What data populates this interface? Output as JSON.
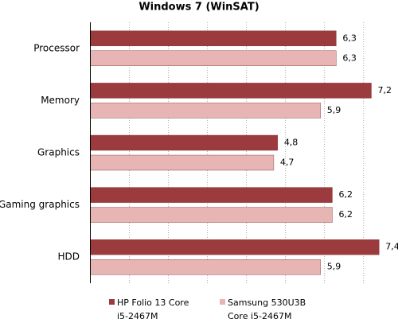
{
  "chart_data": {
    "type": "bar",
    "orientation": "horizontal",
    "title": "Windows 7 (WinSAT)",
    "categories": [
      "Processor",
      "Memory",
      "Graphics",
      "Gaming graphics",
      "HDD"
    ],
    "series": [
      {
        "name": "HP Folio 13 Core i5-2467M",
        "color": "#9c3b3d",
        "values": [
          6.3,
          7.2,
          4.8,
          6.2,
          7.4
        ],
        "value_labels": [
          "6,3",
          "7,2",
          "4,8",
          "6,2",
          "7,4"
        ]
      },
      {
        "name": "Samsung 530U3B Core i5-2467M",
        "color": "#e8b5b5",
        "values": [
          6.3,
          5.9,
          4.7,
          6.2,
          5.9
        ],
        "value_labels": [
          "6,3",
          "5,9",
          "4,7",
          "6,2",
          "5,9"
        ]
      }
    ],
    "xlim": [
      0,
      7.7
    ],
    "xticks": [
      0,
      1,
      2,
      3,
      4,
      5,
      6,
      7
    ],
    "grid": true,
    "legend": "bottom"
  }
}
